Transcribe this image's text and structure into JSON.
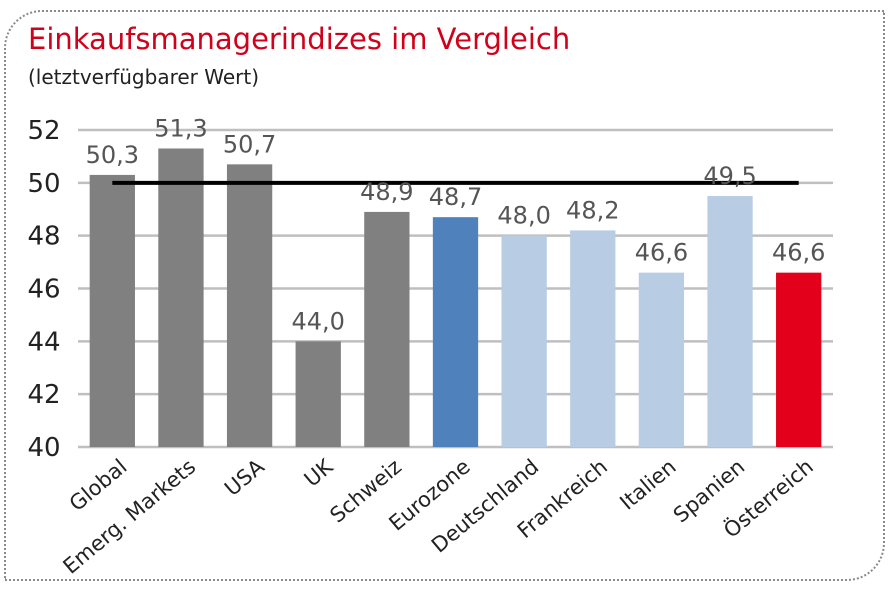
{
  "chart_data": {
    "type": "bar",
    "title": "Einkaufsmanagerindizes im Vergleich",
    "subtitle": "(letztverfügbarer Wert)",
    "categories": [
      "Global",
      "Emerg. Markets",
      "USA",
      "UK",
      "Schweiz",
      "Eurozone",
      "Deutschland",
      "Frankreich",
      "Italien",
      "Spanien",
      "Österreich"
    ],
    "values": [
      50.3,
      51.3,
      50.7,
      44.0,
      48.9,
      48.7,
      48.0,
      48.2,
      46.6,
      49.5,
      46.6
    ],
    "value_labels": [
      "50,3",
      "51,3",
      "50,7",
      "44,0",
      "48,9",
      "48,7",
      "48,0",
      "48,2",
      "46,6",
      "49,5",
      "46,6"
    ],
    "bar_colors": [
      "#808080",
      "#808080",
      "#808080",
      "#808080",
      "#808080",
      "#4f81bd",
      "#b8cce4",
      "#b8cce4",
      "#b8cce4",
      "#b8cce4",
      "#e2001a"
    ],
    "ylim": [
      40,
      52
    ],
    "yticks": [
      40,
      42,
      44,
      46,
      48,
      50,
      52
    ],
    "reference_line": 50,
    "grid": true,
    "xlabel": "",
    "ylabel": ""
  },
  "colors": {
    "title": "#d0021b",
    "grid": "#bfbfbf",
    "reference_line": "#000000"
  }
}
